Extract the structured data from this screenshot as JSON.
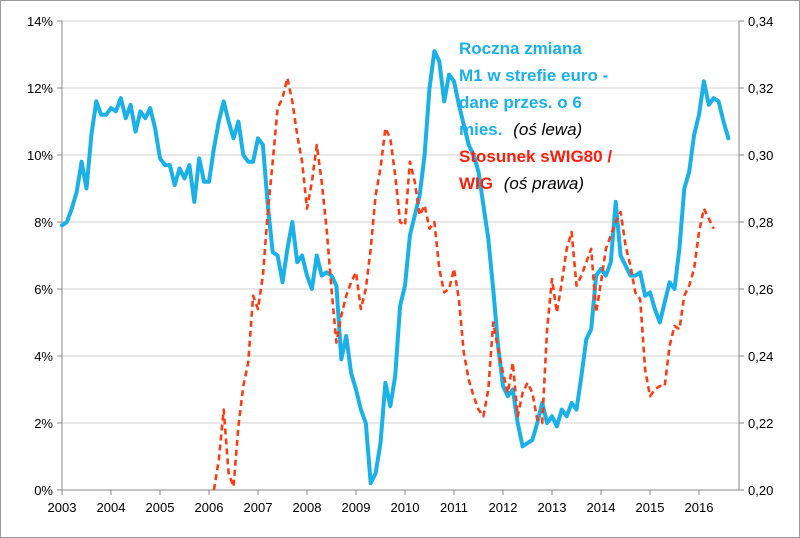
{
  "chart_data": {
    "type": "line",
    "title": "",
    "xlabel": "",
    "ylabel": "",
    "x_ticks": [
      "2003",
      "2004",
      "2005",
      "2006",
      "2007",
      "2008",
      "2009",
      "2010",
      "2011",
      "2012",
      "2013",
      "2014",
      "2015",
      "2016"
    ],
    "y_left": {
      "range": [
        0,
        14
      ],
      "ticks": [
        0,
        2,
        4,
        6,
        8,
        10,
        12,
        14
      ],
      "tick_labels": [
        "0%",
        "2%",
        "4%",
        "6%",
        "8%",
        "10%",
        "12%",
        "14%"
      ]
    },
    "y_right": {
      "range": [
        0.2,
        0.34
      ],
      "ticks": [
        0.2,
        0.22,
        0.24,
        0.26,
        0.28,
        0.3,
        0.32,
        0.34
      ],
      "tick_labels": [
        "0,20",
        "0,22",
        "0,24",
        "0,26",
        "0,28",
        "0,30",
        "0,32",
        "0,34"
      ]
    },
    "grid": "horizontal",
    "series": [
      {
        "name": "Roczna zmiana M1 w strefie euro - dane przes. o 6 mies. (oś lewa)",
        "axis": "left",
        "color": "#1ab0e8",
        "style": "solid",
        "points": [
          [
            2003.0,
            7.9
          ],
          [
            2003.1,
            8.0
          ],
          [
            2003.2,
            8.4
          ],
          [
            2003.3,
            8.9
          ],
          [
            2003.4,
            9.8
          ],
          [
            2003.5,
            9.0
          ],
          [
            2003.6,
            10.6
          ],
          [
            2003.7,
            11.6
          ],
          [
            2003.8,
            11.2
          ],
          [
            2003.9,
            11.2
          ],
          [
            2004.0,
            11.4
          ],
          [
            2004.1,
            11.3
          ],
          [
            2004.2,
            11.7
          ],
          [
            2004.3,
            11.1
          ],
          [
            2004.4,
            11.5
          ],
          [
            2004.5,
            10.7
          ],
          [
            2004.6,
            11.3
          ],
          [
            2004.7,
            11.1
          ],
          [
            2004.8,
            11.4
          ],
          [
            2004.9,
            10.8
          ],
          [
            2005.0,
            9.9
          ],
          [
            2005.1,
            9.7
          ],
          [
            2005.2,
            9.7
          ],
          [
            2005.3,
            9.1
          ],
          [
            2005.4,
            9.6
          ],
          [
            2005.5,
            9.3
          ],
          [
            2005.6,
            9.7
          ],
          [
            2005.7,
            8.6
          ],
          [
            2005.8,
            9.9
          ],
          [
            2005.9,
            9.2
          ],
          [
            2006.0,
            9.2
          ],
          [
            2006.1,
            10.2
          ],
          [
            2006.2,
            11.0
          ],
          [
            2006.3,
            11.6
          ],
          [
            2006.4,
            11.0
          ],
          [
            2006.5,
            10.5
          ],
          [
            2006.6,
            11.0
          ],
          [
            2006.7,
            10.0
          ],
          [
            2006.8,
            9.8
          ],
          [
            2006.9,
            9.8
          ],
          [
            2007.0,
            10.5
          ],
          [
            2007.1,
            10.3
          ],
          [
            2007.2,
            8.5
          ],
          [
            2007.3,
            7.1
          ],
          [
            2007.4,
            7.0
          ],
          [
            2007.5,
            6.2
          ],
          [
            2007.6,
            7.2
          ],
          [
            2007.7,
            8.0
          ],
          [
            2007.8,
            6.8
          ],
          [
            2007.9,
            7.0
          ],
          [
            2008.0,
            6.4
          ],
          [
            2008.1,
            6.0
          ],
          [
            2008.2,
            7.0
          ],
          [
            2008.3,
            6.4
          ],
          [
            2008.4,
            6.5
          ],
          [
            2008.5,
            6.4
          ],
          [
            2008.6,
            6.1
          ],
          [
            2008.7,
            3.9
          ],
          [
            2008.8,
            4.6
          ],
          [
            2008.9,
            3.5
          ],
          [
            2009.0,
            3.0
          ],
          [
            2009.1,
            2.4
          ],
          [
            2009.2,
            2.0
          ],
          [
            2009.3,
            0.2
          ],
          [
            2009.4,
            0.5
          ],
          [
            2009.5,
            1.4
          ],
          [
            2009.6,
            3.2
          ],
          [
            2009.7,
            2.5
          ],
          [
            2009.8,
            3.4
          ],
          [
            2009.9,
            5.5
          ],
          [
            2010.0,
            6.1
          ],
          [
            2010.1,
            7.6
          ],
          [
            2010.2,
            8.2
          ],
          [
            2010.3,
            8.8
          ],
          [
            2010.4,
            10.0
          ],
          [
            2010.5,
            12.0
          ],
          [
            2010.6,
            13.1
          ],
          [
            2010.7,
            12.8
          ],
          [
            2010.8,
            11.6
          ],
          [
            2010.9,
            12.4
          ],
          [
            2011.0,
            12.2
          ],
          [
            2011.1,
            11.5
          ],
          [
            2011.2,
            10.9
          ],
          [
            2011.3,
            10.3
          ],
          [
            2011.4,
            10.0
          ],
          [
            2011.5,
            9.5
          ],
          [
            2011.6,
            8.5
          ],
          [
            2011.7,
            7.5
          ],
          [
            2011.8,
            6.0
          ],
          [
            2011.9,
            4.3
          ],
          [
            2012.0,
            3.1
          ],
          [
            2012.1,
            2.8
          ],
          [
            2012.2,
            3.0
          ],
          [
            2012.3,
            2.0
          ],
          [
            2012.4,
            1.3
          ],
          [
            2012.5,
            1.4
          ],
          [
            2012.6,
            1.5
          ],
          [
            2012.7,
            2.0
          ],
          [
            2012.8,
            2.6
          ],
          [
            2012.9,
            2.0
          ],
          [
            2013.0,
            2.2
          ],
          [
            2013.1,
            1.9
          ],
          [
            2013.2,
            2.4
          ],
          [
            2013.3,
            2.2
          ],
          [
            2013.4,
            2.6
          ],
          [
            2013.5,
            2.4
          ],
          [
            2013.6,
            3.4
          ],
          [
            2013.7,
            4.5
          ],
          [
            2013.8,
            4.8
          ],
          [
            2013.9,
            6.4
          ],
          [
            2014.0,
            6.6
          ],
          [
            2014.1,
            6.4
          ],
          [
            2014.2,
            6.8
          ],
          [
            2014.3,
            8.6
          ],
          [
            2014.4,
            7.0
          ],
          [
            2014.5,
            6.7
          ],
          [
            2014.6,
            6.4
          ],
          [
            2014.7,
            6.4
          ],
          [
            2014.8,
            6.5
          ],
          [
            2014.9,
            5.8
          ],
          [
            2015.0,
            5.9
          ],
          [
            2015.1,
            5.4
          ],
          [
            2015.2,
            5.0
          ],
          [
            2015.3,
            5.6
          ],
          [
            2015.4,
            6.2
          ],
          [
            2015.5,
            6.0
          ],
          [
            2015.6,
            7.2
          ],
          [
            2015.7,
            9.0
          ],
          [
            2015.8,
            9.5
          ],
          [
            2015.9,
            10.6
          ],
          [
            2016.0,
            11.2
          ],
          [
            2016.1,
            12.2
          ],
          [
            2016.2,
            11.5
          ],
          [
            2016.3,
            11.7
          ],
          [
            2016.4,
            11.6
          ],
          [
            2016.5,
            11.0
          ],
          [
            2016.6,
            10.5
          ]
        ]
      },
      {
        "name": "Stosunek sWIG80 / WIG (oś prawa)",
        "axis": "right",
        "color": "#fb3d14",
        "style": "dashed",
        "points": [
          [
            2006.1,
            0.2
          ],
          [
            2006.2,
            0.209
          ],
          [
            2006.3,
            0.224
          ],
          [
            2006.4,
            0.205
          ],
          [
            2006.5,
            0.201
          ],
          [
            2006.6,
            0.219
          ],
          [
            2006.7,
            0.231
          ],
          [
            2006.8,
            0.238
          ],
          [
            2006.9,
            0.258
          ],
          [
            2007.0,
            0.254
          ],
          [
            2007.1,
            0.264
          ],
          [
            2007.2,
            0.283
          ],
          [
            2007.3,
            0.298
          ],
          [
            2007.4,
            0.314
          ],
          [
            2007.5,
            0.317
          ],
          [
            2007.6,
            0.323
          ],
          [
            2007.7,
            0.316
          ],
          [
            2007.8,
            0.306
          ],
          [
            2007.9,
            0.298
          ],
          [
            2008.0,
            0.284
          ],
          [
            2008.1,
            0.292
          ],
          [
            2008.2,
            0.303
          ],
          [
            2008.3,
            0.292
          ],
          [
            2008.4,
            0.278
          ],
          [
            2008.5,
            0.26
          ],
          [
            2008.6,
            0.244
          ],
          [
            2008.7,
            0.252
          ],
          [
            2008.8,
            0.258
          ],
          [
            2008.9,
            0.262
          ],
          [
            2009.0,
            0.265
          ],
          [
            2009.1,
            0.254
          ],
          [
            2009.2,
            0.26
          ],
          [
            2009.3,
            0.272
          ],
          [
            2009.4,
            0.288
          ],
          [
            2009.5,
            0.296
          ],
          [
            2009.6,
            0.308
          ],
          [
            2009.7,
            0.305
          ],
          [
            2009.8,
            0.294
          ],
          [
            2009.9,
            0.28
          ],
          [
            2010.0,
            0.279
          ],
          [
            2010.1,
            0.298
          ],
          [
            2010.2,
            0.292
          ],
          [
            2010.3,
            0.282
          ],
          [
            2010.4,
            0.285
          ],
          [
            2010.5,
            0.278
          ],
          [
            2010.6,
            0.28
          ],
          [
            2010.7,
            0.266
          ],
          [
            2010.8,
            0.259
          ],
          [
            2010.9,
            0.26
          ],
          [
            2011.0,
            0.266
          ],
          [
            2011.1,
            0.257
          ],
          [
            2011.2,
            0.241
          ],
          [
            2011.3,
            0.233
          ],
          [
            2011.4,
            0.228
          ],
          [
            2011.5,
            0.224
          ],
          [
            2011.6,
            0.222
          ],
          [
            2011.7,
            0.23
          ],
          [
            2011.8,
            0.25
          ],
          [
            2011.9,
            0.242
          ],
          [
            2012.0,
            0.235
          ],
          [
            2012.1,
            0.229
          ],
          [
            2012.2,
            0.238
          ],
          [
            2012.3,
            0.222
          ],
          [
            2012.4,
            0.229
          ],
          [
            2012.5,
            0.232
          ],
          [
            2012.6,
            0.229
          ],
          [
            2012.7,
            0.221
          ],
          [
            2012.8,
            0.22
          ],
          [
            2012.9,
            0.248
          ],
          [
            2013.0,
            0.263
          ],
          [
            2013.1,
            0.253
          ],
          [
            2013.2,
            0.262
          ],
          [
            2013.3,
            0.272
          ],
          [
            2013.4,
            0.277
          ],
          [
            2013.5,
            0.261
          ],
          [
            2013.6,
            0.264
          ],
          [
            2013.7,
            0.268
          ],
          [
            2013.8,
            0.272
          ],
          [
            2013.9,
            0.253
          ],
          [
            2014.0,
            0.262
          ],
          [
            2014.1,
            0.272
          ],
          [
            2014.2,
            0.276
          ],
          [
            2014.3,
            0.28
          ],
          [
            2014.4,
            0.283
          ],
          [
            2014.5,
            0.273
          ],
          [
            2014.6,
            0.267
          ],
          [
            2014.7,
            0.259
          ],
          [
            2014.8,
            0.257
          ],
          [
            2014.9,
            0.236
          ],
          [
            2015.0,
            0.228
          ],
          [
            2015.1,
            0.23
          ],
          [
            2015.2,
            0.231
          ],
          [
            2015.3,
            0.231
          ],
          [
            2015.4,
            0.243
          ],
          [
            2015.5,
            0.249
          ],
          [
            2015.6,
            0.248
          ],
          [
            2015.7,
            0.258
          ],
          [
            2015.8,
            0.261
          ],
          [
            2015.9,
            0.266
          ],
          [
            2016.0,
            0.277
          ],
          [
            2016.1,
            0.284
          ],
          [
            2016.2,
            0.281
          ],
          [
            2016.3,
            0.278
          ]
        ]
      }
    ],
    "legend": {
      "placement": "top-right",
      "entries": [
        {
          "color": "#1ab0e8",
          "lines": [
            "Roczna zmiana",
            "M1 w strefie euro -",
            "dane przes. o 6"
          ],
          "last_line": "mies.",
          "note": "(oś lewa)"
        },
        {
          "color": "#fb3d14",
          "lines": [
            "Stosunek sWIG80 /"
          ],
          "last_line": "WIG",
          "note": "(oś prawa)"
        }
      ]
    }
  }
}
